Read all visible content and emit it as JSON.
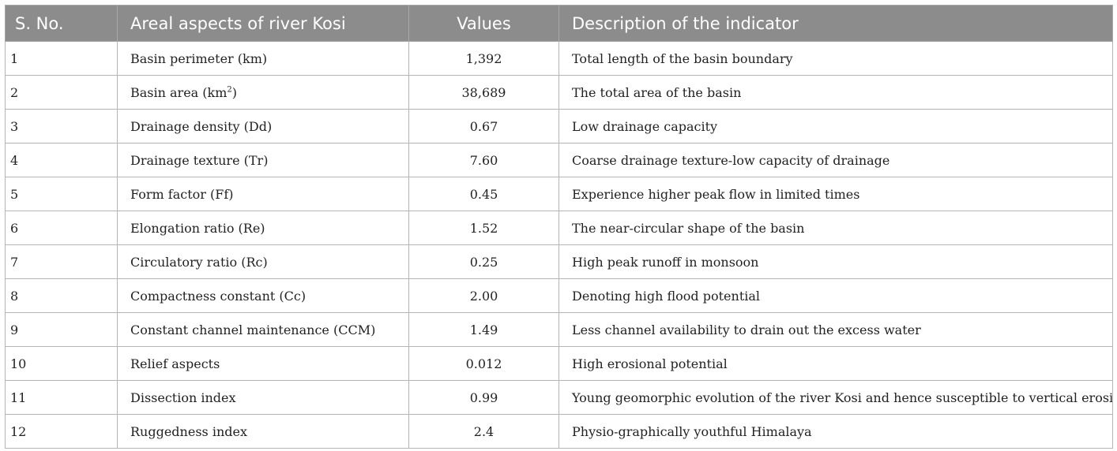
{
  "table": {
    "headers": [
      "S. No.",
      "Areal aspects of river Kosi",
      "Values",
      "Description of the indicator"
    ],
    "rows": [
      {
        "sno": "1",
        "aspect": "Basin perimeter (km)",
        "value": "1,392",
        "description": "Total length of the basin boundary"
      },
      {
        "sno": "2",
        "aspect_main": "Basin area (km",
        "aspect_sup": "2",
        "aspect_end": ")",
        "value": "38,689",
        "description": "The total area of the basin"
      },
      {
        "sno": "3",
        "aspect": "Drainage density (Dd)",
        "value": "0.67",
        "description": "Low drainage capacity"
      },
      {
        "sno": "4",
        "aspect": "Drainage texture (Tr)",
        "value": "7.60",
        "description": "Coarse drainage texture-low capacity of drainage"
      },
      {
        "sno": "5",
        "aspect": "Form factor (Ff)",
        "value": "0.45",
        "description": "Experience higher peak flow in limited times"
      },
      {
        "sno": "6",
        "aspect": "Elongation ratio (Re)",
        "value": "1.52",
        "description": "The near-circular shape of the basin"
      },
      {
        "sno": "7",
        "aspect": "Circulatory ratio (Rc)",
        "value": "0.25",
        "description": "High peak runoff in monsoon"
      },
      {
        "sno": "8",
        "aspect": "Compactness constant (Cc)",
        "value": "2.00",
        "description": "Denoting high flood potential"
      },
      {
        "sno": "9",
        "aspect": "Constant channel maintenance (CCM)",
        "value": "1.49",
        "description": "Less channel availability to drain out the excess water"
      },
      {
        "sno": "10",
        "aspect": "Relief aspects",
        "value": "0.012",
        "description": "High erosional potential"
      },
      {
        "sno": "11",
        "aspect": "Dissection index",
        "value": "0.99",
        "description": "Young geomorphic evolution of the river Kosi and hence susceptible to vertical erosion"
      },
      {
        "sno": "12",
        "aspect": "Ruggedness index",
        "value": "2.4",
        "description": "Physio-graphically youthful Himalaya"
      }
    ]
  }
}
